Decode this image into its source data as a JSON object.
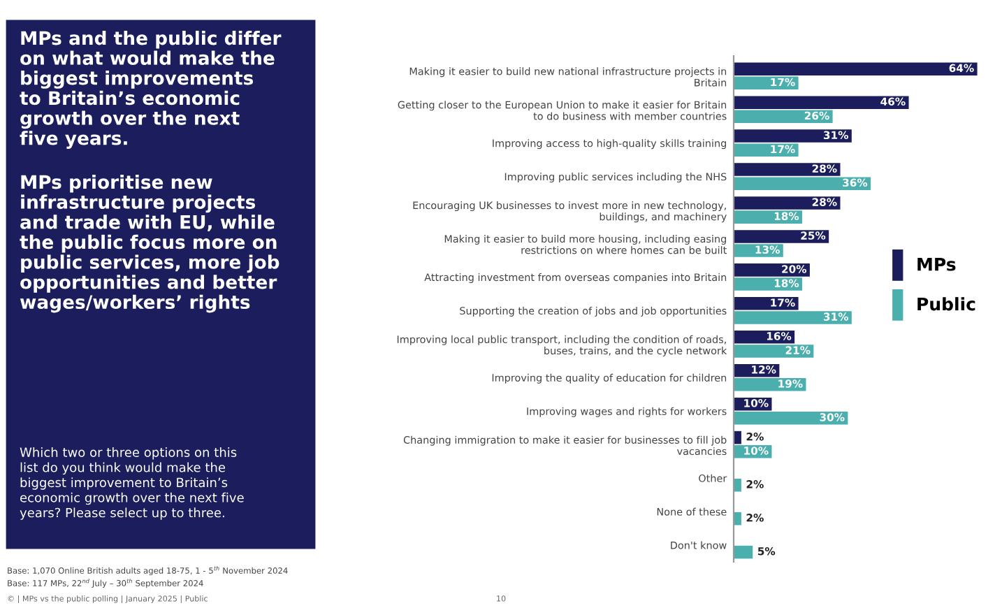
{
  "chart_data": {
    "type": "bar",
    "orientation": "horizontal",
    "title": "MPs and the public differ\non what would make the\nbiggest improvements\nto Britain’s economic\ngrowth over the next\nfive years.",
    "subtitle": "MPs prioritise new\ninfrastructure projects\nand trade with EU, while\nthe public focus more on\npublic services, more job\nopportunities and better\nwages/workers’ rights",
    "categories": [
      "Making it easier to build new national infrastructure projects in\nBritain",
      "Getting closer to the European Union to make it easier for Britain\nto do business with member countries",
      "Improving access to high-quality skills training",
      "Improving public services including the NHS",
      "Encouraging UK businesses to invest more in new technology,\nbuildings, and machinery",
      "Making it easier to build more housing, including easing\nrestrictions on where homes can be built",
      "Attracting investment from overseas companies into Britain",
      "Supporting the creation of jobs and job opportunities",
      "Improving local public transport, including the condition of roads,\nbuses, trains, and the cycle network",
      "Improving the quality of education for children",
      "Improving wages and rights for workers",
      "Changing immigration to make it easier for businesses to fill job\nvacancies",
      "Other",
      "None of these",
      "Don't know"
    ],
    "series": [
      {
        "name": "MPs",
        "color": "#1b1d5c",
        "values": [
          64,
          46,
          31,
          28,
          28,
          25,
          20,
          17,
          16,
          12,
          10,
          2,
          null,
          null,
          null
        ],
        "value_labels": [
          "64%",
          "46%",
          "31%",
          "28%",
          "28%",
          "25%",
          "20%",
          "17%",
          "16%",
          "12%",
          "10%",
          "2%",
          null,
          null,
          null
        ]
      },
      {
        "name": "Public",
        "color": "#4bb0ad",
        "values": [
          17,
          26,
          17,
          36,
          18,
          13,
          18,
          31,
          21,
          19,
          30,
          10,
          2,
          2,
          5
        ],
        "value_labels": [
          "17%",
          "26%",
          "17%",
          "36%",
          "18%",
          "13%",
          "18%",
          "31%",
          "21%",
          "19%",
          "30%",
          "10%",
          "2%",
          "2%",
          "5%"
        ]
      }
    ],
    "legend": "right",
    "tick_labels": "y",
    "annotations": [
      "Which two or three options on this\nlist do you think would make the\nbiggest improvement to Britain’s\neconomic growth over the next five\nyears? Please select up to three.",
      "Base: 1,070 Online British adults aged 18-75, 1 - 5$^{th}$ November 2024",
      "Base: 117 MPs, 22$^{nd}$ July – 30$^{th}$ September 2024",
      "© | MPs vs the public polling | January 2025 | Public",
      "10"
    ]
  }
}
